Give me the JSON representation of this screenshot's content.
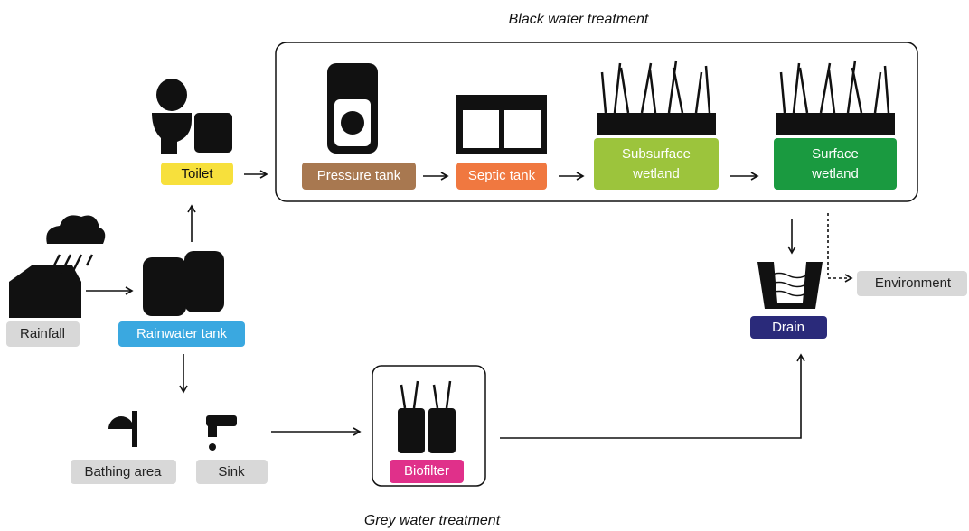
{
  "black_water_title": "Black water treatment",
  "grey_water_title": "Grey water treatment",
  "nodes": [
    {
      "lines": [
        "Toilet"
      ]
    },
    {
      "lines": [
        "Pressure tank"
      ]
    },
    {
      "lines": [
        "Septic tank"
      ]
    },
    {
      "lines": [
        "Subsurface",
        "wetland"
      ]
    },
    {
      "lines": [
        "Surface",
        "wetland"
      ]
    },
    {
      "lines": [
        "Rainfall"
      ]
    },
    {
      "lines": [
        "Rainwater tank"
      ]
    },
    {
      "lines": [
        "Drain"
      ]
    },
    {
      "lines": [
        "Environment"
      ]
    },
    {
      "lines": [
        "Bathing area"
      ]
    },
    {
      "lines": [
        "Sink"
      ]
    },
    {
      "lines": [
        "Biofilter"
      ]
    }
  ]
}
